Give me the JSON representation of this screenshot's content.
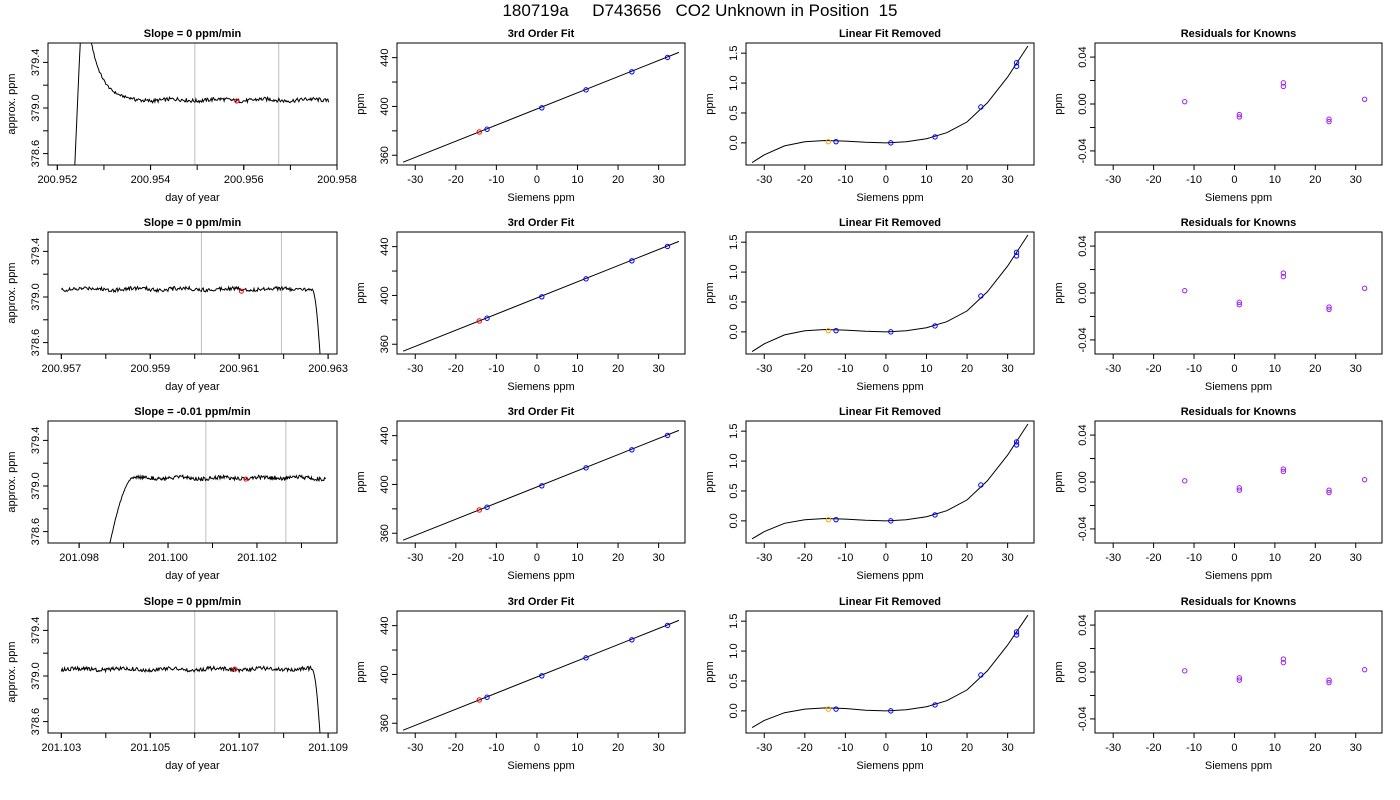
{
  "title": "180719a     D743656   CO2 Unknown in Position  15",
  "colors": {
    "unknown": "#ff0000",
    "known": "#0000ff",
    "fit_point": "#ffa500",
    "residual": "#a020f0",
    "marker_line": "#bebebe",
    "line": "#000000"
  },
  "chart_data": [
    {
      "row": 1,
      "panel": "trace",
      "type": "line",
      "title": "Slope =  0  ppm/min",
      "xlabel": "day of year",
      "ylabel": "approx. ppm",
      "xlim": [
        200.9518,
        200.958
      ],
      "ylim": [
        378.5,
        379.57
      ],
      "xticks": [
        "200.952",
        "200.954",
        "200.956",
        "200.958"
      ],
      "yticks": [
        "378.6",
        "379.0",
        "379.4"
      ],
      "markers": [
        200.95495,
        200.95675
      ],
      "highlight": {
        "x": 200.95585,
        "y": 379.06
      },
      "trace": {
        "x_start": 200.9523,
        "x_end": 200.95782,
        "plateau": 379.07,
        "shape": "spike"
      }
    },
    {
      "row": 1,
      "panel": "fit",
      "type": "scatter",
      "title": "3rd Order Fit",
      "xlabel": "Siemens ppm",
      "ylabel": "ppm",
      "xlim": [
        -34.5,
        36.5
      ],
      "ylim": [
        352,
        452
      ],
      "xticks": [
        "-30",
        "-20",
        "-10",
        "0",
        "10",
        "20",
        "30"
      ],
      "yticks": [
        "360",
        "400",
        "440"
      ],
      "known_x": [
        -12.3,
        1.2,
        12.1,
        23.4,
        32.2
      ],
      "known_y": [
        381.3,
        398.9,
        413.6,
        428.4,
        440.2
      ],
      "unknown": {
        "x": -14.2,
        "y": 379.1
      },
      "fit": {
        "x": [
          -33,
          35
        ],
        "y": [
          354.3,
          444.3
        ]
      }
    },
    {
      "row": 1,
      "panel": "linfit",
      "type": "scatter",
      "title": "Linear Fit Removed",
      "xlabel": "Siemens ppm",
      "ylabel": "ppm",
      "xlim": [
        -34.5,
        36.5
      ],
      "ylim": [
        -0.37,
        1.67
      ],
      "xticks": [
        "-30",
        "-20",
        "-10",
        "0",
        "10",
        "20",
        "30"
      ],
      "yticks": [
        "0.0",
        "0.5",
        "1.0",
        "1.5"
      ],
      "known_x": [
        -12.3,
        1.2,
        12.1,
        23.4,
        32.2,
        32.2
      ],
      "known_y": [
        0.02,
        0.0,
        0.1,
        0.6,
        1.28,
        1.34
      ],
      "unknown": {
        "x": -14.2,
        "y": 0.02
      },
      "curve": {
        "x": [
          -33,
          -30,
          -25,
          -20,
          -15,
          -10,
          -5,
          0,
          5,
          10,
          15,
          20,
          25,
          30,
          35
        ],
        "y": [
          -0.33,
          -0.2,
          -0.05,
          0.02,
          0.04,
          0.03,
          0.01,
          0.0,
          0.02,
          0.07,
          0.17,
          0.35,
          0.67,
          1.1,
          1.62
        ]
      }
    },
    {
      "row": 1,
      "panel": "resid",
      "type": "scatter",
      "title": "Residuals for Knowns",
      "xlabel": "Siemens ppm",
      "ylabel": "ppm",
      "xlim": [
        -34.5,
        36.5
      ],
      "ylim": [
        -0.052,
        0.052
      ],
      "xticks": [
        "-30",
        "-20",
        "-10",
        "0",
        "10",
        "20",
        "30"
      ],
      "yticks": [
        "-0.04",
        "0.00",
        "0.04"
      ],
      "x": [
        -12.3,
        1.2,
        1.2,
        12.1,
        12.1,
        23.4,
        23.4,
        32.2
      ],
      "y": [
        0.002,
        -0.009,
        -0.011,
        0.018,
        0.015,
        -0.013,
        -0.015,
        0.004
      ]
    },
    {
      "row": 2,
      "panel": "trace",
      "type": "line",
      "title": "Slope =  0  ppm/min",
      "xlabel": "day of year",
      "ylabel": "approx. ppm",
      "xlim": [
        200.9567,
        200.9632
      ],
      "ylim": [
        378.5,
        379.57
      ],
      "xticks": [
        "200.957",
        "200.959",
        "200.961",
        "200.963"
      ],
      "yticks": [
        "378.6",
        "379.0",
        "379.4"
      ],
      "markers": [
        200.96015,
        200.96195
      ],
      "highlight": {
        "x": 200.96105,
        "y": 379.05
      },
      "trace": {
        "x_start": 200.957,
        "x_end": 200.9629,
        "plateau": 379.07,
        "shape": "drop"
      }
    },
    {
      "row": 2,
      "panel": "fit",
      "type": "scatter",
      "title": "3rd Order Fit",
      "xlabel": "Siemens ppm",
      "ylabel": "ppm",
      "xlim": [
        -34.5,
        36.5
      ],
      "ylim": [
        352,
        452
      ],
      "xticks": [
        "-30",
        "-20",
        "-10",
        "0",
        "10",
        "20",
        "30"
      ],
      "yticks": [
        "360",
        "400",
        "440"
      ],
      "known_x": [
        -12.3,
        1.2,
        12.1,
        23.4,
        32.2
      ],
      "known_y": [
        381.3,
        398.9,
        413.6,
        428.4,
        440.2
      ],
      "unknown": {
        "x": -14.2,
        "y": 379.1
      },
      "fit": {
        "x": [
          -33,
          35
        ],
        "y": [
          354.3,
          444.3
        ]
      }
    },
    {
      "row": 2,
      "panel": "linfit",
      "type": "scatter",
      "title": "Linear Fit Removed",
      "xlabel": "Siemens ppm",
      "ylabel": "ppm",
      "xlim": [
        -34.5,
        36.5
      ],
      "ylim": [
        -0.37,
        1.67
      ],
      "xticks": [
        "-30",
        "-20",
        "-10",
        "0",
        "10",
        "20",
        "30"
      ],
      "yticks": [
        "0.0",
        "0.5",
        "1.0",
        "1.5"
      ],
      "known_x": [
        -12.3,
        1.2,
        12.1,
        23.4,
        32.2,
        32.2
      ],
      "known_y": [
        0.02,
        0.0,
        0.1,
        0.6,
        1.27,
        1.33
      ],
      "unknown": {
        "x": -14.2,
        "y": 0.02
      },
      "curve": {
        "x": [
          -33,
          -30,
          -25,
          -20,
          -15,
          -10,
          -5,
          0,
          5,
          10,
          15,
          20,
          25,
          30,
          35
        ],
        "y": [
          -0.33,
          -0.2,
          -0.05,
          0.02,
          0.04,
          0.03,
          0.01,
          0.0,
          0.02,
          0.07,
          0.17,
          0.35,
          0.67,
          1.1,
          1.62
        ]
      }
    },
    {
      "row": 2,
      "panel": "resid",
      "type": "scatter",
      "title": "Residuals for Knowns",
      "xlabel": "Siemens ppm",
      "ylabel": "ppm",
      "xlim": [
        -34.5,
        36.5
      ],
      "ylim": [
        -0.052,
        0.052
      ],
      "xticks": [
        "-30",
        "-20",
        "-10",
        "0",
        "10",
        "20",
        "30"
      ],
      "yticks": [
        "-0.04",
        "0.00",
        "0.04"
      ],
      "x": [
        -12.3,
        1.2,
        1.2,
        12.1,
        12.1,
        23.4,
        23.4,
        32.2
      ],
      "y": [
        0.002,
        -0.008,
        -0.01,
        0.017,
        0.014,
        -0.012,
        -0.014,
        0.004
      ]
    },
    {
      "row": 3,
      "panel": "trace",
      "type": "line",
      "title": "Slope =  -0.01  ppm/min",
      "xlabel": "day of year",
      "ylabel": "approx. ppm",
      "xlim": [
        201.0973,
        201.1038
      ],
      "ylim": [
        378.5,
        379.57
      ],
      "xticks": [
        "201.098",
        "201.100",
        "201.102"
      ],
      "yticks": [
        "378.6",
        "379.0",
        "379.4"
      ],
      "markers": [
        201.10085,
        201.10265
      ],
      "highlight": {
        "x": 201.10175,
        "y": 379.06
      },
      "trace": {
        "x_start": 201.0986,
        "x_end": 201.10355,
        "plateau": 379.07,
        "shape": "rise"
      }
    },
    {
      "row": 3,
      "panel": "fit",
      "type": "scatter",
      "title": "3rd Order Fit",
      "xlabel": "Siemens ppm",
      "ylabel": "ppm",
      "xlim": [
        -34.5,
        36.5
      ],
      "ylim": [
        352,
        452
      ],
      "xticks": [
        "-30",
        "-20",
        "-10",
        "0",
        "10",
        "20",
        "30"
      ],
      "yticks": [
        "360",
        "400",
        "440"
      ],
      "known_x": [
        -12.3,
        1.2,
        12.1,
        23.4,
        32.2
      ],
      "known_y": [
        381.3,
        398.9,
        413.6,
        428.4,
        440.2
      ],
      "unknown": {
        "x": -14.2,
        "y": 379.1
      },
      "fit": {
        "x": [
          -33,
          35
        ],
        "y": [
          354.3,
          444.3
        ]
      }
    },
    {
      "row": 3,
      "panel": "linfit",
      "type": "scatter",
      "title": "Linear Fit Removed",
      "xlabel": "Siemens ppm",
      "ylabel": "ppm",
      "xlim": [
        -34.5,
        36.5
      ],
      "ylim": [
        -0.37,
        1.67
      ],
      "xticks": [
        "-30",
        "-20",
        "-10",
        "0",
        "10",
        "20",
        "30"
      ],
      "yticks": [
        "0.0",
        "0.5",
        "1.0",
        "1.5"
      ],
      "known_x": [
        -12.3,
        1.2,
        12.1,
        23.4,
        32.2,
        32.2
      ],
      "known_y": [
        0.02,
        0.0,
        0.1,
        0.6,
        1.27,
        1.32
      ],
      "unknown": {
        "x": -14.2,
        "y": 0.02
      },
      "curve": {
        "x": [
          -33,
          -30,
          -25,
          -20,
          -15,
          -10,
          -5,
          0,
          5,
          10,
          15,
          20,
          25,
          30,
          35
        ],
        "y": [
          -0.3,
          -0.18,
          -0.04,
          0.02,
          0.04,
          0.03,
          0.01,
          0.0,
          0.02,
          0.07,
          0.17,
          0.35,
          0.67,
          1.1,
          1.62
        ]
      }
    },
    {
      "row": 3,
      "panel": "resid",
      "type": "scatter",
      "title": "Residuals for Knowns",
      "xlabel": "Siemens ppm",
      "ylabel": "ppm",
      "xlim": [
        -34.5,
        36.5
      ],
      "ylim": [
        -0.052,
        0.052
      ],
      "xticks": [
        "-30",
        "-20",
        "-10",
        "0",
        "10",
        "20",
        "30"
      ],
      "yticks": [
        "-0.04",
        "0.00",
        "0.04"
      ],
      "x": [
        -12.3,
        1.2,
        1.2,
        12.1,
        12.1,
        23.4,
        23.4,
        32.2
      ],
      "y": [
        0.001,
        -0.005,
        -0.007,
        0.011,
        0.009,
        -0.007,
        -0.009,
        0.002
      ]
    },
    {
      "row": 4,
      "panel": "trace",
      "type": "line",
      "title": "Slope =  0  ppm/min",
      "xlabel": "day of year",
      "ylabel": "approx. ppm",
      "xlim": [
        201.1027,
        201.1092
      ],
      "ylim": [
        378.5,
        379.57
      ],
      "xticks": [
        "201.103",
        "201.105",
        "201.107",
        "201.109"
      ],
      "yticks": [
        "378.6",
        "379.0",
        "379.4"
      ],
      "markers": [
        201.106,
        201.1078
      ],
      "highlight": {
        "x": 201.1069,
        "y": 379.06
      },
      "trace": {
        "x_start": 201.103,
        "x_end": 201.1089,
        "plateau": 379.06,
        "shape": "drop"
      }
    },
    {
      "row": 4,
      "panel": "fit",
      "type": "scatter",
      "title": "3rd Order Fit",
      "xlabel": "Siemens ppm",
      "ylabel": "ppm",
      "xlim": [
        -34.5,
        36.5
      ],
      "ylim": [
        352,
        452
      ],
      "xticks": [
        "-30",
        "-20",
        "-10",
        "0",
        "10",
        "20",
        "30"
      ],
      "yticks": [
        "360",
        "400",
        "440"
      ],
      "known_x": [
        -12.3,
        1.2,
        12.1,
        23.4,
        32.2
      ],
      "known_y": [
        381.3,
        398.9,
        413.6,
        428.4,
        440.2
      ],
      "unknown": {
        "x": -14.2,
        "y": 379.1
      },
      "fit": {
        "x": [
          -33,
          35
        ],
        "y": [
          354.3,
          444.3
        ]
      }
    },
    {
      "row": 4,
      "panel": "linfit",
      "type": "scatter",
      "title": "Linear Fit Removed",
      "xlabel": "Siemens ppm",
      "ylabel": "ppm",
      "xlim": [
        -34.5,
        36.5
      ],
      "ylim": [
        -0.37,
        1.67
      ],
      "xticks": [
        "-30",
        "-20",
        "-10",
        "0",
        "10",
        "20",
        "30"
      ],
      "yticks": [
        "0.0",
        "0.5",
        "1.0",
        "1.5"
      ],
      "known_x": [
        -12.3,
        1.2,
        12.1,
        23.4,
        32.2,
        32.2
      ],
      "known_y": [
        0.03,
        0.0,
        0.1,
        0.6,
        1.27,
        1.32
      ],
      "unknown": {
        "x": -14.2,
        "y": 0.03
      },
      "curve": {
        "x": [
          -33,
          -30,
          -25,
          -20,
          -15,
          -10,
          -5,
          0,
          5,
          10,
          15,
          20,
          25,
          30,
          35
        ],
        "y": [
          -0.28,
          -0.16,
          -0.03,
          0.03,
          0.05,
          0.04,
          0.01,
          0.0,
          0.02,
          0.07,
          0.17,
          0.35,
          0.67,
          1.1,
          1.6
        ]
      }
    },
    {
      "row": 4,
      "panel": "resid",
      "type": "scatter",
      "title": "Residuals for Knowns",
      "xlabel": "Siemens ppm",
      "ylabel": "ppm",
      "xlim": [
        -34.5,
        36.5
      ],
      "ylim": [
        -0.052,
        0.052
      ],
      "xticks": [
        "-30",
        "-20",
        "-10",
        "0",
        "10",
        "20",
        "30"
      ],
      "yticks": [
        "-0.04",
        "0.00",
        "0.04"
      ],
      "x": [
        -12.3,
        1.2,
        1.2,
        12.1,
        12.1,
        23.4,
        23.4,
        32.2
      ],
      "y": [
        0.001,
        -0.005,
        -0.007,
        0.011,
        0.008,
        -0.007,
        -0.009,
        0.002
      ]
    }
  ]
}
